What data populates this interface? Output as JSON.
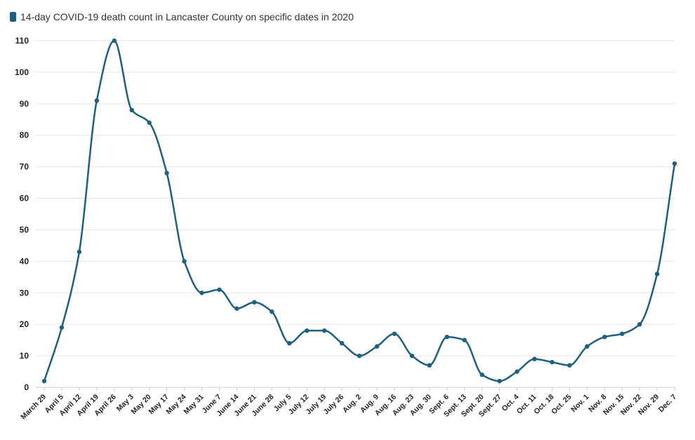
{
  "chart_data": {
    "type": "line",
    "series": [
      {
        "name": "14-day COVID-19 death count in Lancaster County on specific dates in 2020",
        "color": "#1f5f80",
        "values": [
          2,
          19,
          43,
          91,
          110,
          88,
          84,
          68,
          40,
          30,
          31,
          25,
          27,
          24,
          14,
          18,
          18,
          14,
          10,
          13,
          17,
          10,
          7,
          16,
          15,
          4,
          2,
          5,
          9,
          8,
          7,
          13,
          16,
          17,
          20,
          36,
          71
        ]
      }
    ],
    "categories": [
      "March 29",
      "April 5",
      "April 12",
      "April 19",
      "April 26",
      "May 3",
      "May 20",
      "May 17",
      "May 24",
      "May 31",
      "June 7",
      "June 14",
      "June 21",
      "June 28",
      "July 5",
      "July 12",
      "July 19",
      "July 26",
      "Aug. 2",
      "Aug. 9",
      "Aug. 16",
      "Aug. 23",
      "Aug. 30",
      "Sept. 6",
      "Sept. 13",
      "Sept. 20",
      "Sept. 27",
      "Oct. 4",
      "Oct. 11",
      "Oct. 18",
      "Oct. 25",
      "Nov. 1",
      "Nov. 8",
      "Nov. 15",
      "Nov. 22",
      "Nov. 29",
      "Dec. 7"
    ],
    "yticks": [
      0,
      10,
      20,
      30,
      40,
      50,
      60,
      70,
      80,
      90,
      100,
      110
    ],
    "ylim": [
      0,
      110
    ],
    "grid": true,
    "legend": "top-left",
    "title": "",
    "xlabel": "",
    "ylabel": ""
  }
}
